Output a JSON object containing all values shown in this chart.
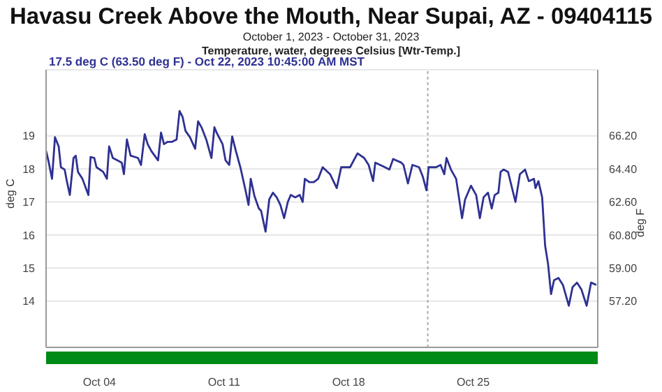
{
  "chart_data": {
    "type": "line",
    "title": "Havasu Creek Above the Mouth, Near Supai, AZ - 09404115",
    "subtitle": "October 1, 2023 - October 31, 2023\nTemperature, water, degrees Celsius [Wtr-Temp.]",
    "ylabel": "deg C",
    "y2label": "deg F",
    "annotations": [
      "17.5 deg C (63.50 deg F) - Oct 22, 2023 10:45:00 AM MST"
    ],
    "x": [
      "2023-10-01T00:00",
      "2023-10-01T03:00",
      "2023-10-01T08:00",
      "2023-10-01T12:00",
      "2023-10-01T17:00",
      "2023-10-01T20:00",
      "2023-10-02T01:00",
      "2023-10-02T04:00",
      "2023-10-02T08:00",
      "2023-10-02T13:00",
      "2023-10-02T16:00",
      "2023-10-02T19:00",
      "2023-10-03T01:00",
      "2023-10-03T09:00",
      "2023-10-03T12:00",
      "2023-10-03T17:00",
      "2023-10-03T20:00",
      "2023-10-04T05:00",
      "2023-10-04T10:00",
      "2023-10-04T13:00",
      "2023-10-04T18:00",
      "2023-10-05T00:00",
      "2023-10-05T06:00",
      "2023-10-05T09:00",
      "2023-10-05T13:00",
      "2023-10-05T18:00",
      "2023-10-06T04:00",
      "2023-10-06T08:00",
      "2023-10-06T13:00",
      "2023-10-06T17:00",
      "2023-10-06T22:00",
      "2023-10-07T07:00",
      "2023-10-07T11:00",
      "2023-10-07T15:00",
      "2023-10-07T20:00",
      "2023-10-08T02:00",
      "2023-10-08T08:00",
      "2023-10-08T12:00",
      "2023-10-08T16:00",
      "2023-10-08T20:00",
      "2023-10-09T02:00",
      "2023-10-09T09:00",
      "2023-10-09T13:00",
      "2023-10-09T18:00",
      "2023-10-10T00:00",
      "2023-10-10T07:00",
      "2023-10-10T11:00",
      "2023-10-10T14:00",
      "2023-10-10T22:00",
      "2023-10-11T02:00",
      "2023-10-11T07:00",
      "2023-10-11T11:00",
      "2023-10-11T16:00",
      "2023-10-11T22:00",
      "2023-10-12T05:00",
      "2023-10-12T09:00",
      "2023-10-12T12:00",
      "2023-10-12T17:00",
      "2023-10-12T23:00",
      "2023-10-13T02:00",
      "2023-10-13T08:00",
      "2023-10-13T13:00",
      "2023-10-13T18:00",
      "2023-10-13T23:00",
      "2023-10-14T04:00",
      "2023-10-14T09:00",
      "2023-10-14T14:00",
      "2023-10-14T18:00",
      "2023-10-15T00:00",
      "2023-10-15T06:00",
      "2023-10-15T10:00",
      "2023-10-15T13:00",
      "2023-10-15T19:00",
      "2023-10-16T01:00",
      "2023-10-16T07:00",
      "2023-10-16T13:00",
      "2023-10-16T23:00",
      "2023-10-17T08:00",
      "2023-10-17T14:00",
      "2023-10-18T02:00",
      "2023-10-18T12:00",
      "2023-10-18T21:00",
      "2023-10-19T03:00",
      "2023-10-19T09:00",
      "2023-10-19T12:00",
      "2023-10-20T01:00",
      "2023-10-20T07:00",
      "2023-10-20T12:00",
      "2023-10-20T23:00",
      "2023-10-21T02:00",
      "2023-10-21T08:00",
      "2023-10-21T14:00",
      "2023-10-21T23:00",
      "2023-10-22T04:00",
      "2023-10-22T09:00",
      "2023-10-22T12:00",
      "2023-10-22T22:00",
      "2023-10-23T04:00",
      "2023-10-23T09:00",
      "2023-10-23T12:00",
      "2023-10-23T18:00",
      "2023-10-24T01:00",
      "2023-10-24T09:00",
      "2023-10-24T13:00",
      "2023-10-24T21:00",
      "2023-10-25T04:00",
      "2023-10-25T09:00",
      "2023-10-25T14:00",
      "2023-10-25T20:00",
      "2023-10-26T01:00",
      "2023-10-26T05:00",
      "2023-10-26T10:00",
      "2023-10-26T13:00",
      "2023-10-26T17:00",
      "2023-10-26T23:00",
      "2023-10-27T09:00",
      "2023-10-27T15:00",
      "2023-10-27T22:00",
      "2023-10-28T03:00",
      "2023-10-28T10:00",
      "2023-10-28T12:00",
      "2023-10-28T16:00",
      "2023-10-28T21:00",
      "2023-10-29T01:00",
      "2023-10-29T05:00",
      "2023-10-29T09:00",
      "2023-10-29T13:00",
      "2023-10-29T19:00",
      "2023-10-30T01:00",
      "2023-10-30T09:00",
      "2023-10-30T14:00",
      "2023-10-30T20:00",
      "2023-10-31T02:00",
      "2023-10-31T09:00",
      "2023-10-31T15:00",
      "2023-10-31T22:00"
    ],
    "series": [
      {
        "color": "#2e3192",
        "values": [
          18.54,
          18.26,
          17.7,
          18.96,
          18.68,
          18.05,
          17.98,
          17.63,
          17.21,
          18.33,
          18.4,
          17.91,
          17.7,
          17.21,
          18.36,
          18.33,
          18.05,
          17.91,
          17.7,
          18.68,
          18.33,
          18.26,
          18.19,
          17.84,
          18.89,
          18.4,
          18.33,
          18.12,
          19.05,
          18.75,
          18.54,
          18.26,
          19.1,
          18.75,
          18.82,
          18.82,
          18.89,
          19.75,
          19.58,
          19.15,
          18.96,
          18.61,
          19.44,
          19.24,
          18.89,
          18.33,
          19.26,
          19.1,
          18.75,
          18.26,
          18.12,
          18.98,
          18.54,
          18.05,
          17.35,
          16.91,
          17.7,
          17.18,
          16.8,
          16.73,
          16.1,
          17.08,
          17.28,
          17.14,
          16.91,
          16.51,
          17.0,
          17.21,
          17.14,
          17.21,
          17.0,
          17.7,
          17.6,
          17.6,
          17.7,
          18.05,
          17.84,
          17.42,
          18.05,
          18.05,
          18.47,
          18.33,
          18.12,
          17.63,
          18.19,
          18.05,
          17.98,
          18.3,
          18.19,
          18.12,
          17.56,
          18.12,
          18.05,
          17.77,
          17.35,
          18.05,
          18.05,
          18.12,
          17.84,
          18.33,
          17.98,
          17.7,
          16.51,
          17.07,
          17.49,
          17.21,
          16.51,
          17.14,
          17.28,
          16.8,
          17.21,
          17.28,
          17.91,
          17.98,
          17.91,
          17.0,
          17.84,
          17.98,
          17.63,
          17.7,
          17.42,
          17.63,
          17.14,
          15.68,
          15.12,
          14.21,
          14.63,
          14.7,
          14.49,
          13.86,
          14.42,
          14.56,
          14.35,
          13.86,
          14.56,
          14.49
        ]
      }
    ],
    "xlim": [
      "2023-10-01",
      "2023-11-01"
    ],
    "xticks": [
      {
        "value": "2023-10-04",
        "label": "Oct 04"
      },
      {
        "value": "2023-10-11",
        "label": "Oct 11"
      },
      {
        "value": "2023-10-18",
        "label": "Oct 18"
      },
      {
        "value": "2023-10-25",
        "label": "Oct 25"
      }
    ],
    "ylim": [
      12.6,
      21
    ],
    "yticks": [
      14,
      15,
      16,
      17,
      18,
      19
    ],
    "y2lim": [
      54.68,
      69.8
    ],
    "y2ticks": [
      {
        "value": 57.2,
        "label": "57.20"
      },
      {
        "value": 59,
        "label": "59.00"
      },
      {
        "value": 60.8,
        "label": "60.80"
      },
      {
        "value": 62.6,
        "label": "62.60"
      },
      {
        "value": 64.4,
        "label": "64.40"
      },
      {
        "value": 66.2,
        "label": "66.20"
      }
    ],
    "ref_lines": [
      {
        "axis": "x",
        "value": "2023-10-22T10:45",
        "color": "#aaaaaa",
        "line_style": "dotted"
      }
    ],
    "grid": "y",
    "marker": "none",
    "line_style": "solid"
  }
}
